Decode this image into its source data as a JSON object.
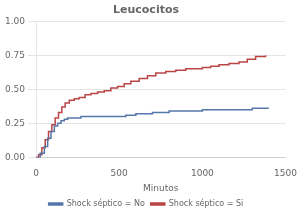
{
  "chart_data": {
    "type": "line",
    "line_style": "step",
    "title": "Leucocitos",
    "x_label": "Minutos",
    "xlim": [
      0,
      1500
    ],
    "ylim": [
      0.0,
      1.0
    ],
    "xticks": [
      0,
      500,
      1000,
      1500
    ],
    "yticks": [
      {
        "value": 0,
        "label": "0.00"
      },
      {
        "value": 0.25,
        "label": "0.25"
      },
      {
        "value": 0.5,
        "label": "0.50"
      },
      {
        "value": 0.75,
        "label": "0.75"
      },
      {
        "value": 1,
        "label": "1.00"
      }
    ],
    "grid": "y",
    "legend": "bottom",
    "series": [
      {
        "name": "Shock séptico = No",
        "color": "#5577aa",
        "x": [
          0,
          25,
          50,
          70,
          90,
          110,
          130,
          150,
          170,
          190,
          210,
          240,
          270,
          310,
          360,
          420,
          480,
          540,
          600,
          700,
          800,
          900,
          1000,
          1100,
          1200,
          1300,
          1400
        ],
        "values": [
          0.0,
          0.03,
          0.08,
          0.14,
          0.19,
          0.23,
          0.25,
          0.27,
          0.28,
          0.29,
          0.29,
          0.29,
          0.3,
          0.3,
          0.3,
          0.3,
          0.3,
          0.31,
          0.32,
          0.33,
          0.34,
          0.34,
          0.35,
          0.35,
          0.35,
          0.36,
          0.36
        ]
      },
      {
        "name": "Shock séptico = Si",
        "color": "#bb4444",
        "x": [
          0,
          15,
          35,
          55,
          75,
          95,
          115,
          135,
          155,
          175,
          200,
          230,
          260,
          295,
          330,
          370,
          410,
          450,
          490,
          530,
          570,
          620,
          670,
          720,
          780,
          840,
          900,
          950,
          1000,
          1050,
          1100,
          1160,
          1220,
          1270,
          1320,
          1380
        ],
        "values": [
          0.0,
          0.02,
          0.07,
          0.13,
          0.19,
          0.24,
          0.29,
          0.33,
          0.37,
          0.4,
          0.42,
          0.43,
          0.44,
          0.46,
          0.47,
          0.48,
          0.49,
          0.51,
          0.52,
          0.54,
          0.56,
          0.58,
          0.6,
          0.62,
          0.63,
          0.64,
          0.65,
          0.65,
          0.66,
          0.67,
          0.68,
          0.69,
          0.7,
          0.72,
          0.74,
          0.75
        ]
      }
    ]
  }
}
